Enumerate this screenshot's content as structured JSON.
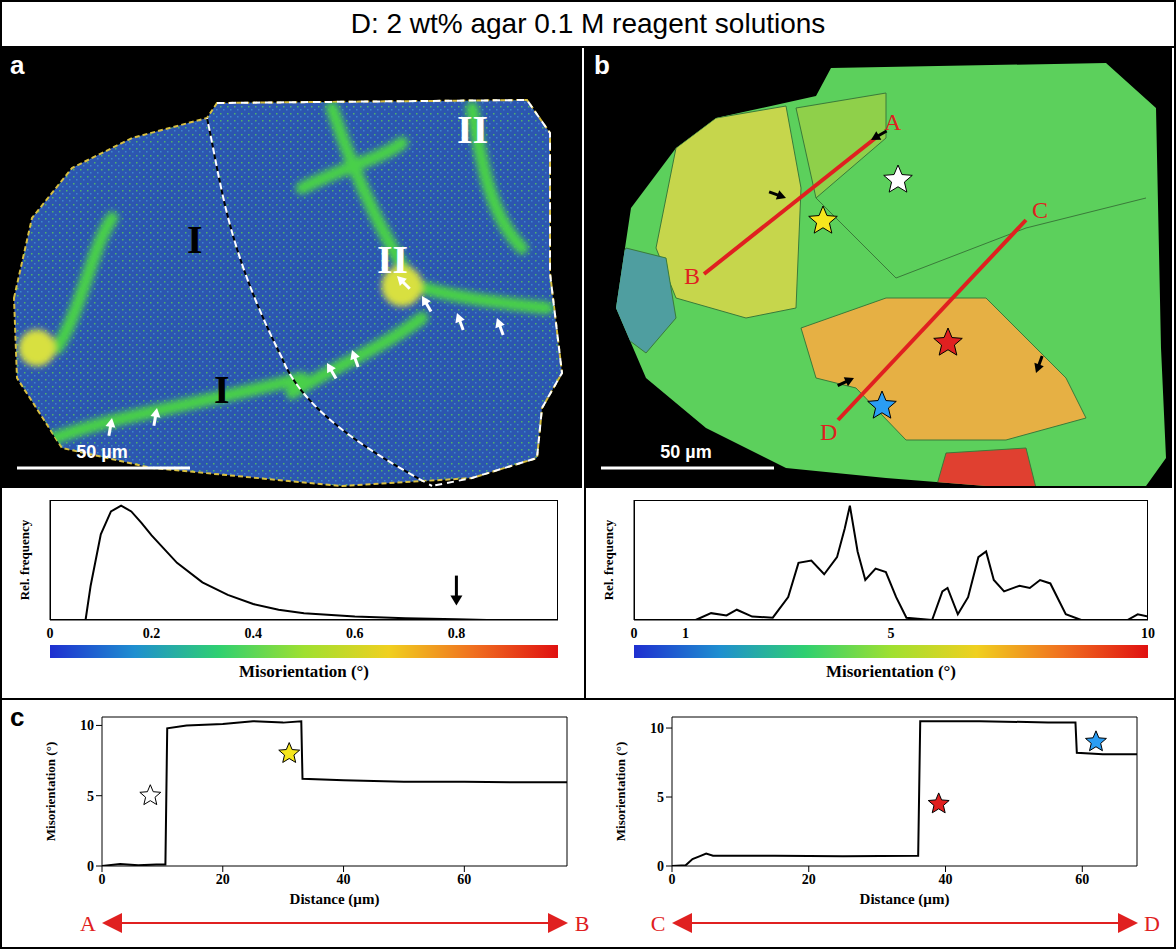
{
  "title": "D: 2 wt% agar 0.1 M reagent solutions",
  "panel_letters": [
    "a",
    "b",
    "c"
  ],
  "maps": [
    {
      "region_labels": [
        "I",
        "I",
        "II",
        "II"
      ],
      "scale_bar": "50 µm"
    },
    {
      "line_labels": [
        "A",
        "B",
        "C",
        "D"
      ],
      "scale_bar": "50 µm",
      "star_colors": [
        "#ffffff",
        "#f5e61e",
        "#e02020",
        "#2a9df4"
      ]
    }
  ],
  "chart_data": [
    {
      "type": "line",
      "x_label": "Misorientation (°)",
      "y_label": "Rel. frequency",
      "x": [
        0.07,
        0.08,
        0.1,
        0.12,
        0.14,
        0.16,
        0.18,
        0.2,
        0.25,
        0.3,
        0.35,
        0.4,
        0.45,
        0.5,
        0.6,
        0.7,
        0.8,
        0.86
      ],
      "values": [
        0,
        0.3,
        0.75,
        0.95,
        1.0,
        0.95,
        0.85,
        0.74,
        0.5,
        0.33,
        0.22,
        0.14,
        0.09,
        0.06,
        0.03,
        0.015,
        0.007,
        0
      ],
      "color": "#000000",
      "xlim": [
        0,
        1
      ],
      "xticks": [
        0,
        0.2,
        0.4,
        0.6,
        0.8
      ],
      "ylim": [
        0,
        1.05
      ],
      "tick_labels": "x",
      "arrow_at": 0.8
    },
    {
      "type": "line",
      "x_label": "Misorientation (°)",
      "y_label": "Rel. frequency",
      "x": [
        0,
        1.2,
        1.5,
        1.8,
        2.0,
        2.3,
        2.7,
        3.0,
        3.2,
        3.45,
        3.7,
        3.95,
        4.1,
        4.2,
        4.35,
        4.5,
        4.7,
        4.9,
        5.1,
        5.3,
        5.8,
        6.0,
        6.1,
        6.3,
        6.5,
        6.7,
        6.85,
        7.0,
        7.2,
        7.5,
        7.7,
        7.9,
        8.1,
        8.4,
        8.7,
        9.6,
        9.8,
        10
      ],
      "values": [
        0,
        0,
        0.06,
        0.04,
        0.09,
        0.03,
        0.02,
        0.2,
        0.5,
        0.52,
        0.4,
        0.55,
        0.8,
        1.0,
        0.6,
        0.35,
        0.45,
        0.42,
        0.2,
        0.02,
        0,
        0.25,
        0.28,
        0.05,
        0.2,
        0.55,
        0.6,
        0.35,
        0.25,
        0.3,
        0.28,
        0.35,
        0.32,
        0.05,
        0,
        0,
        0.05,
        0.03
      ],
      "color": "#000000",
      "xlim": [
        0,
        10
      ],
      "xticks": [
        0,
        1,
        5,
        10
      ],
      "ylim": [
        0,
        1.05
      ],
      "tick_labels": "x"
    },
    {
      "type": "line",
      "x_label": "Distance (µm)",
      "y_label": "Misorientation (°)",
      "x": [
        0,
        3,
        6,
        9,
        10.5,
        10.8,
        14,
        20,
        25,
        30,
        33,
        33.2,
        40,
        50,
        60,
        70,
        77
      ],
      "values": [
        0,
        0.15,
        0.05,
        0.1,
        0.1,
        9.8,
        10.0,
        10.1,
        10.3,
        10.2,
        10.3,
        6.2,
        6.1,
        6.0,
        6.0,
        5.95,
        5.95
      ],
      "color": "#000000",
      "xlim": [
        0,
        77
      ],
      "xticks": [
        0,
        20,
        40,
        60
      ],
      "ylim": [
        0,
        10.6
      ],
      "yticks": [
        0,
        5,
        10
      ],
      "stars": {
        "x": [
          8,
          31
        ],
        "y": [
          5,
          8
        ],
        "colors": [
          "#ffffff",
          "#f5e61e"
        ]
      },
      "endpoints": [
        "A",
        "B"
      ]
    },
    {
      "type": "line",
      "x_label": "Distance (µm)",
      "y_label": "Misorientation (°)",
      "x": [
        0,
        2,
        3,
        4,
        5,
        6,
        15,
        25,
        36,
        36.3,
        45,
        55,
        59,
        59.2,
        63,
        68
      ],
      "values": [
        0,
        0.05,
        0.5,
        0.7,
        0.9,
        0.75,
        0.75,
        0.7,
        0.75,
        10.5,
        10.5,
        10.4,
        10.4,
        8.2,
        8.1,
        8.1
      ],
      "color": "#000000",
      "xlim": [
        0,
        68
      ],
      "xticks": [
        0,
        20,
        40,
        60
      ],
      "ylim": [
        0,
        10.8
      ],
      "yticks": [
        0,
        5,
        10
      ],
      "stars": {
        "x": [
          39,
          62
        ],
        "y": [
          4.5,
          9
        ],
        "colors": [
          "#e02020",
          "#2a9df4"
        ]
      },
      "endpoints": [
        "C",
        "D"
      ]
    }
  ]
}
